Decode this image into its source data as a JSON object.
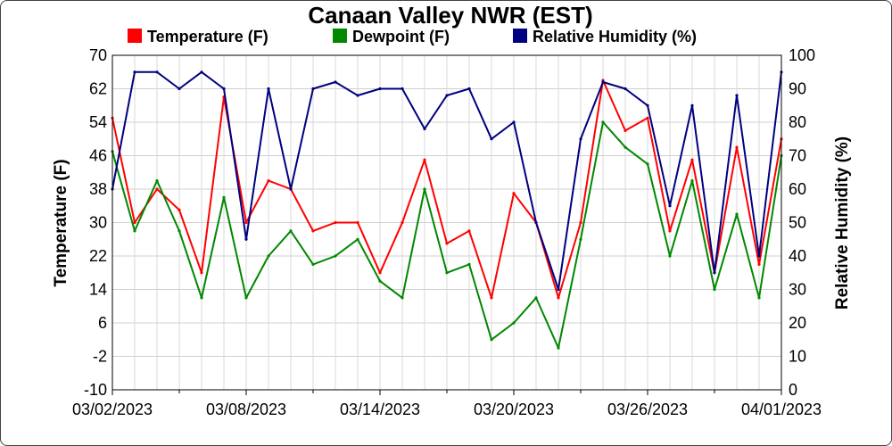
{
  "chart_data": {
    "type": "line",
    "title": "Canaan Valley NWR (EST)",
    "ylabel_left": "Temperature (F)",
    "ylabel_right": "Relative Humidity (%)",
    "ylim_left": [
      -10,
      70
    ],
    "ylim_right": [
      0,
      100
    ],
    "yticks_left": [
      "70",
      "62",
      "54",
      "46",
      "38",
      "30",
      "22",
      "14",
      "6",
      "-2",
      "-10"
    ],
    "yticks_right": [
      "100",
      "90",
      "80",
      "70",
      "60",
      "50",
      "40",
      "30",
      "20",
      "10",
      "0"
    ],
    "xlim": [
      "03/02/2023",
      "04/01/2023"
    ],
    "xtick_labels": [
      "03/02/2023",
      "03/08/2023",
      "03/14/2023",
      "03/20/2023",
      "03/26/2023",
      "04/01/2023"
    ],
    "grid": true,
    "legend_position": "top",
    "x": [
      "03/02/2023",
      "03/03/2023",
      "03/04/2023",
      "03/05/2023",
      "03/06/2023",
      "03/07/2023",
      "03/08/2023",
      "03/09/2023",
      "03/10/2023",
      "03/11/2023",
      "03/12/2023",
      "03/13/2023",
      "03/14/2023",
      "03/15/2023",
      "03/16/2023",
      "03/17/2023",
      "03/18/2023",
      "03/19/2023",
      "03/20/2023",
      "03/21/2023",
      "03/22/2023",
      "03/23/2023",
      "03/24/2023",
      "03/25/2023",
      "03/26/2023",
      "03/27/2023",
      "03/28/2023",
      "03/29/2023",
      "03/30/2023",
      "03/31/2023",
      "04/01/2023"
    ],
    "series": [
      {
        "name": "Temperature (F)",
        "color": "#ff0000",
        "axis": "left",
        "values": [
          55,
          30,
          38,
          33,
          18,
          60,
          30,
          40,
          38,
          28,
          30,
          30,
          18,
          30,
          45,
          25,
          28,
          12,
          37,
          30,
          12,
          30,
          64,
          52,
          55,
          28,
          45,
          18,
          48,
          20,
          50
        ]
      },
      {
        "name": "Dewpoint (F)",
        "color": "#008800",
        "axis": "left",
        "values": [
          47,
          28,
          40,
          28,
          12,
          36,
          12,
          22,
          28,
          20,
          22,
          26,
          16,
          12,
          38,
          18,
          20,
          2,
          6,
          12,
          0,
          26,
          54,
          48,
          44,
          22,
          40,
          14,
          32,
          12,
          46
        ]
      },
      {
        "name": "Relative Humidity (%)",
        "color": "#000080",
        "axis": "right",
        "values": [
          60,
          95,
          95,
          90,
          95,
          90,
          45,
          90,
          60,
          90,
          92,
          88,
          90,
          90,
          78,
          88,
          90,
          75,
          80,
          50,
          30,
          75,
          92,
          90,
          85,
          55,
          85,
          35,
          88,
          40,
          95
        ]
      }
    ]
  }
}
